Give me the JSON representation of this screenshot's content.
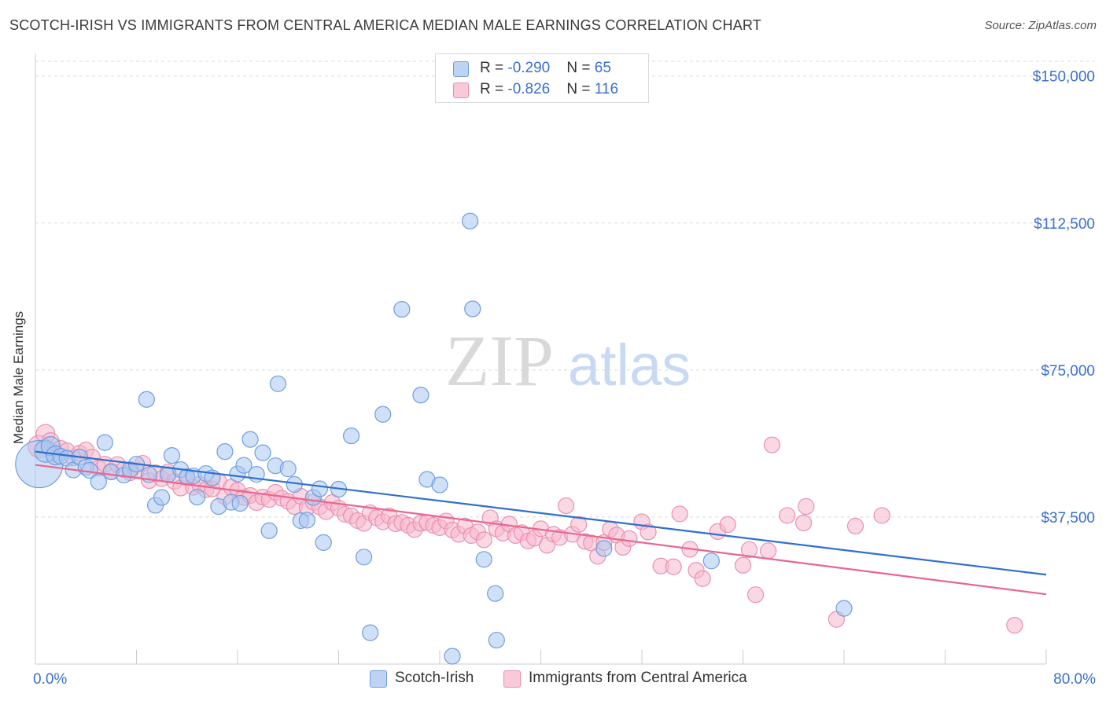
{
  "title": "SCOTCH-IRISH VS IMMIGRANTS FROM CENTRAL AMERICA MEDIAN MALE EARNINGS CORRELATION CHART",
  "source": "Source: ZipAtlas.com",
  "watermark": {
    "zip": "ZIP",
    "atlas": "atlas"
  },
  "legend": {
    "row1": {
      "r_label": "R = ",
      "r_value": "-0.290",
      "n_label": "N = ",
      "n_value": "65"
    },
    "row2": {
      "r_label": "R = ",
      "r_value": "-0.826",
      "n_label": "N = ",
      "n_value": "116"
    }
  },
  "colors": {
    "blue_fill": "#a9c7f0",
    "blue_stroke": "#6e9ee0",
    "blue_line": "#2e6fd0",
    "pink_fill": "#f6b8cc",
    "pink_stroke": "#ec8fae",
    "pink_line": "#e8668f",
    "tick_label": "#3b6fd0",
    "grid": "#d9d9d9"
  },
  "chart_data": {
    "type": "scatter",
    "title": "SCOTCH-IRISH VS IMMIGRANTS FROM CENTRAL AMERICA MEDIAN MALE EARNINGS CORRELATION CHART",
    "xlabel": "",
    "ylabel": "Median Male Earnings",
    "xlim": [
      0,
      80
    ],
    "ylim": [
      0,
      153750
    ],
    "x_tick_labels": [
      "0.0%",
      "80.0%"
    ],
    "y_ticks": [
      37500,
      75000,
      112500,
      150000
    ],
    "y_tick_labels": [
      "$37,500",
      "$75,000",
      "$112,500",
      "$150,000"
    ],
    "grid": true,
    "legend_position": "top-center",
    "series": [
      {
        "name": "Scotch-Irish",
        "color": "#a9c7f0",
        "trend": {
          "x": [
            0,
            80
          ],
          "y": [
            54200,
            22800
          ]
        },
        "points": [
          [
            0.3,
            51000,
            30
          ],
          [
            0.8,
            54300,
            14
          ],
          [
            1.2,
            55600,
            12
          ],
          [
            1.6,
            53200,
            12
          ],
          [
            2.0,
            53000,
            10
          ],
          [
            2.5,
            52500,
            10
          ],
          [
            3.0,
            49500,
            10
          ],
          [
            3.5,
            52800,
            10
          ],
          [
            4.0,
            50200,
            10
          ],
          [
            4.3,
            49400,
            10
          ],
          [
            5.0,
            46500,
            10
          ],
          [
            5.5,
            56500,
            10
          ],
          [
            6.0,
            49000,
            10
          ],
          [
            7.0,
            48200,
            10
          ],
          [
            7.5,
            49600,
            10
          ],
          [
            8.0,
            51000,
            10
          ],
          [
            8.8,
            67500,
            10
          ],
          [
            9.5,
            40500,
            10
          ],
          [
            10.0,
            42500,
            10
          ],
          [
            10.5,
            48300,
            10
          ],
          [
            10.8,
            53200,
            10
          ],
          [
            11.5,
            49600,
            10
          ],
          [
            12.0,
            47800,
            10
          ],
          [
            12.5,
            48000,
            10
          ],
          [
            12.8,
            42600,
            10
          ],
          [
            13.5,
            48600,
            10
          ],
          [
            14.0,
            47500,
            10
          ],
          [
            14.5,
            40200,
            10
          ],
          [
            15.0,
            54200,
            10
          ],
          [
            15.5,
            41300,
            10
          ],
          [
            16.0,
            48500,
            10
          ],
          [
            16.5,
            50700,
            10
          ],
          [
            17.0,
            57300,
            10
          ],
          [
            17.5,
            48400,
            10
          ],
          [
            18.0,
            53900,
            10
          ],
          [
            18.5,
            34000,
            10
          ],
          [
            19.0,
            50600,
            10
          ],
          [
            19.2,
            71500,
            10
          ],
          [
            20.0,
            49800,
            10
          ],
          [
            20.5,
            45800,
            10
          ],
          [
            21.0,
            36600,
            10
          ],
          [
            21.5,
            36700,
            10
          ],
          [
            22.0,
            42500,
            10
          ],
          [
            22.5,
            44700,
            10
          ],
          [
            22.8,
            31000,
            10
          ],
          [
            24.0,
            44600,
            10
          ],
          [
            25.0,
            58200,
            10
          ],
          [
            26.0,
            27300,
            10
          ],
          [
            26.5,
            8000,
            10
          ],
          [
            27.5,
            63700,
            10
          ],
          [
            29.0,
            90500,
            10
          ],
          [
            30.5,
            68600,
            10
          ],
          [
            31.0,
            47100,
            10
          ],
          [
            32.0,
            45700,
            10
          ],
          [
            33.0,
            2000,
            10
          ],
          [
            34.4,
            113000,
            10
          ],
          [
            34.6,
            90600,
            10
          ],
          [
            35.5,
            26700,
            10
          ],
          [
            36.4,
            18000,
            10
          ],
          [
            36.5,
            6100,
            10
          ],
          [
            45.0,
            29500,
            10
          ],
          [
            53.5,
            26300,
            10
          ],
          [
            64.0,
            14200,
            10
          ],
          [
            16.2,
            41000,
            10
          ],
          [
            9.0,
            48300,
            10
          ]
        ]
      },
      {
        "name": "Immigrants from Central America",
        "color": "#f6b8cc",
        "trend": {
          "x": [
            0,
            80
          ],
          "y": [
            50800,
            17800
          ]
        },
        "points": [
          [
            0.3,
            55500,
            14
          ],
          [
            0.8,
            58700,
            12
          ],
          [
            1.2,
            56800,
            11
          ],
          [
            1.5,
            53700,
            11
          ],
          [
            2.0,
            55000,
            10
          ],
          [
            2.5,
            54400,
            10
          ],
          [
            3.0,
            52600,
            10
          ],
          [
            3.5,
            53800,
            10
          ],
          [
            4.0,
            54600,
            10
          ],
          [
            4.5,
            52800,
            10
          ],
          [
            5.0,
            50000,
            10
          ],
          [
            5.5,
            51000,
            10
          ],
          [
            6.0,
            49200,
            10
          ],
          [
            6.5,
            50900,
            10
          ],
          [
            7.0,
            49600,
            10
          ],
          [
            7.5,
            48800,
            10
          ],
          [
            8.0,
            49500,
            10
          ],
          [
            8.5,
            51200,
            10
          ],
          [
            9.0,
            46800,
            10
          ],
          [
            9.5,
            48800,
            10
          ],
          [
            10.0,
            47300,
            10
          ],
          [
            10.5,
            49000,
            10
          ],
          [
            11.0,
            46600,
            10
          ],
          [
            11.5,
            44900,
            10
          ],
          [
            12.0,
            47500,
            10
          ],
          [
            12.5,
            45100,
            10
          ],
          [
            13.0,
            45800,
            10
          ],
          [
            13.5,
            44500,
            10
          ],
          [
            14.0,
            44700,
            10
          ],
          [
            14.5,
            46600,
            10
          ],
          [
            15.0,
            42700,
            10
          ],
          [
            15.5,
            45100,
            10
          ],
          [
            16.0,
            44300,
            10
          ],
          [
            16.5,
            42500,
            10
          ],
          [
            17.0,
            43000,
            10
          ],
          [
            17.5,
            41200,
            10
          ],
          [
            18.0,
            42600,
            10
          ],
          [
            18.5,
            42000,
            10
          ],
          [
            19.0,
            43800,
            10
          ],
          [
            19.5,
            42300,
            10
          ],
          [
            20.0,
            41500,
            10
          ],
          [
            20.5,
            40200,
            10
          ],
          [
            21.0,
            42800,
            10
          ],
          [
            21.5,
            39800,
            10
          ],
          [
            22.0,
            41300,
            10
          ],
          [
            22.5,
            40100,
            10
          ],
          [
            23.0,
            38900,
            10
          ],
          [
            23.5,
            41200,
            10
          ],
          [
            24.0,
            39800,
            10
          ],
          [
            24.5,
            38200,
            10
          ],
          [
            25.0,
            37800,
            10
          ],
          [
            25.5,
            36600,
            10
          ],
          [
            26.0,
            35900,
            10
          ],
          [
            26.5,
            38600,
            10
          ],
          [
            27.0,
            37300,
            10
          ],
          [
            27.5,
            36300,
            10
          ],
          [
            28.0,
            37800,
            10
          ],
          [
            28.5,
            35800,
            10
          ],
          [
            29.0,
            36100,
            10
          ],
          [
            29.5,
            35400,
            10
          ],
          [
            30.0,
            34300,
            10
          ],
          [
            30.5,
            35900,
            10
          ],
          [
            31.0,
            36100,
            10
          ],
          [
            31.5,
            35400,
            10
          ],
          [
            32.0,
            34800,
            10
          ],
          [
            32.5,
            36500,
            10
          ],
          [
            33.0,
            34200,
            10
          ],
          [
            33.5,
            33100,
            10
          ],
          [
            34.0,
            35200,
            10
          ],
          [
            34.5,
            32800,
            10
          ],
          [
            35.0,
            33700,
            10
          ],
          [
            35.5,
            31700,
            10
          ],
          [
            36.0,
            37300,
            10
          ],
          [
            36.5,
            34500,
            10
          ],
          [
            37.0,
            33400,
            10
          ],
          [
            37.5,
            35700,
            10
          ],
          [
            38.0,
            32800,
            10
          ],
          [
            38.5,
            33500,
            10
          ],
          [
            39.0,
            31400,
            10
          ],
          [
            39.5,
            32100,
            10
          ],
          [
            40.0,
            34500,
            10
          ],
          [
            40.5,
            30300,
            10
          ],
          [
            41.0,
            33100,
            10
          ],
          [
            41.5,
            32300,
            10
          ],
          [
            42.0,
            40400,
            10
          ],
          [
            42.5,
            33100,
            10
          ],
          [
            43.0,
            35600,
            10
          ],
          [
            43.5,
            31300,
            10
          ],
          [
            44.0,
            30900,
            10
          ],
          [
            44.5,
            27500,
            10
          ],
          [
            45.0,
            31000,
            10
          ],
          [
            45.5,
            34400,
            10
          ],
          [
            46.0,
            32900,
            10
          ],
          [
            46.5,
            29800,
            10
          ],
          [
            47.0,
            32000,
            10
          ],
          [
            48.0,
            36300,
            10
          ],
          [
            48.5,
            33700,
            10
          ],
          [
            49.5,
            25000,
            10
          ],
          [
            50.5,
            24800,
            10
          ],
          [
            51.0,
            38300,
            10
          ],
          [
            51.8,
            29300,
            10
          ],
          [
            52.3,
            23900,
            10
          ],
          [
            52.8,
            21800,
            10
          ],
          [
            54.0,
            33800,
            10
          ],
          [
            54.8,
            35600,
            10
          ],
          [
            56.0,
            25200,
            10
          ],
          [
            56.5,
            29200,
            10
          ],
          [
            57.0,
            17700,
            10
          ],
          [
            58.0,
            28900,
            10
          ],
          [
            58.3,
            55900,
            10
          ],
          [
            59.5,
            37900,
            10
          ],
          [
            60.8,
            36000,
            10
          ],
          [
            61.0,
            40200,
            10
          ],
          [
            63.4,
            11400,
            10
          ],
          [
            64.9,
            35200,
            10
          ],
          [
            67.0,
            37900,
            10
          ],
          [
            77.5,
            9900,
            10
          ]
        ]
      }
    ]
  },
  "bottom_legend": [
    "Scotch-Irish",
    "Immigrants from Central America"
  ]
}
